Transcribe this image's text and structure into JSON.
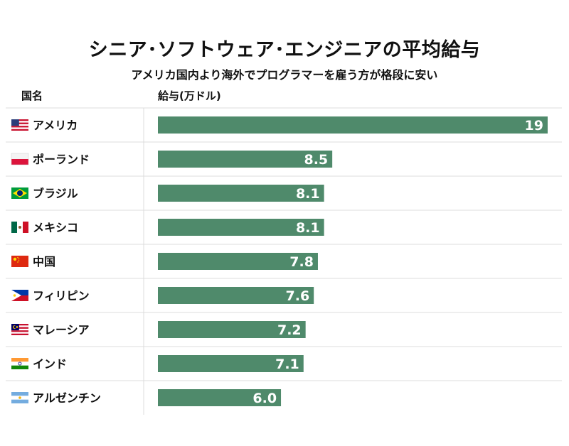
{
  "header": {
    "title": "シニア･ソフトウェア･エンジニアの平均給与",
    "subtitle": "アメリカ国内より海外でプログラマーを雇う方が格段に安い",
    "col_country": "国名",
    "col_value": "給与(万ドル)"
  },
  "colors": {
    "bar": "#4f8a6b",
    "rule": "#dcdcdc"
  },
  "chart_data": {
    "type": "bar",
    "orientation": "horizontal",
    "title": "シニア･ソフトウェア･エンジニアの平均給与",
    "subtitle": "アメリカ国内より海外でプログラマーを雇う方が格段に安い",
    "xlabel": "給与(万ドル)",
    "ylabel": "国名",
    "xlim": [
      0,
      19
    ],
    "categories": [
      "アメリカ",
      "ポーランド",
      "ブラジル",
      "メキシコ",
      "中国",
      "フィリピン",
      "マレーシア",
      "インド",
      "アルゼンチン"
    ],
    "values": [
      19,
      8.5,
      8.1,
      8.1,
      7.8,
      7.6,
      7.2,
      7.1,
      6.0
    ],
    "value_labels": [
      "19",
      "8.5",
      "8.1",
      "8.1",
      "7.8",
      "7.6",
      "7.2",
      "7.1",
      "6.0"
    ],
    "flags": [
      "us-flag",
      "poland-flag",
      "brazil-flag",
      "mexico-flag",
      "china-flag",
      "philippines-flag",
      "malaysia-flag",
      "india-flag",
      "argentina-flag"
    ],
    "grid": false,
    "legend": "none"
  }
}
